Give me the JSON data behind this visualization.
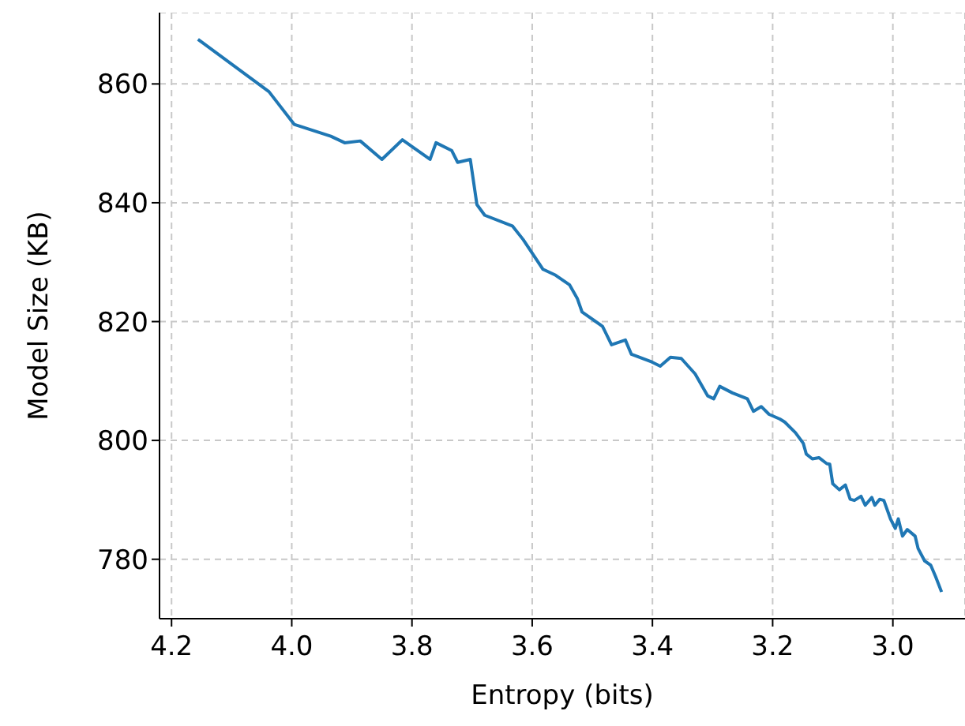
{
  "chart_data": {
    "type": "line",
    "xlabel": "Entropy (bits)",
    "ylabel": "Model Size (KB)",
    "x": [
      4.156,
      4.038,
      3.996,
      3.935,
      3.912,
      3.886,
      3.85,
      3.816,
      3.77,
      3.76,
      3.734,
      3.724,
      3.703,
      3.692,
      3.679,
      3.633,
      3.615,
      3.582,
      3.561,
      3.538,
      3.525,
      3.517,
      3.483,
      3.468,
      3.445,
      3.435,
      3.401,
      3.387,
      3.37,
      3.352,
      3.329,
      3.308,
      3.298,
      3.288,
      3.267,
      3.242,
      3.232,
      3.219,
      3.206,
      3.188,
      3.18,
      3.162,
      3.149,
      3.144,
      3.134,
      3.123,
      3.11,
      3.105,
      3.1,
      3.089,
      3.079,
      3.071,
      3.064,
      3.053,
      3.046,
      3.035,
      3.03,
      3.022,
      3.015,
      3.004,
      2.996,
      2.991,
      2.984,
      2.976,
      2.963,
      2.958,
      2.947,
      2.937,
      2.929,
      2.919
    ],
    "series": [
      {
        "color": "#1f77b4",
        "values": [
          867.5,
          858.7,
          853.2,
          851.2,
          850.1,
          850.4,
          847.3,
          850.6,
          847.3,
          850.1,
          848.8,
          846.8,
          847.3,
          839.7,
          837.9,
          836.1,
          833.8,
          828.8,
          827.8,
          826.2,
          823.9,
          821.6,
          819.2,
          816.1,
          816.9,
          814.5,
          813.2,
          812.5,
          814,
          813.8,
          811.2,
          807.5,
          807,
          809.1,
          808,
          807,
          804.9,
          805.7,
          804.4,
          803.6,
          803.1,
          801.3,
          799.5,
          797.7,
          796.9,
          797.1,
          796.1,
          796,
          792.7,
          791.7,
          792.5,
          790.1,
          789.9,
          790.6,
          789.1,
          790.4,
          789.1,
          790.1,
          789.9,
          786.8,
          785.2,
          786.8,
          783.9,
          785,
          783.9,
          781.8,
          779.7,
          779,
          777.1,
          774.5
        ]
      }
    ],
    "xlim": [
      4.22,
      2.88
    ],
    "xticks": [
      4.2,
      {
        "value": 4,
        "label": "4.0"
      },
      3.8,
      3.6,
      3.4,
      3.2,
      {
        "value": 3,
        "label": "3.0"
      }
    ],
    "ylim": [
      770,
      872
    ],
    "yticks": [
      780,
      800,
      820,
      840,
      860
    ],
    "grid": true,
    "marker": "none",
    "line_style": "solid"
  }
}
